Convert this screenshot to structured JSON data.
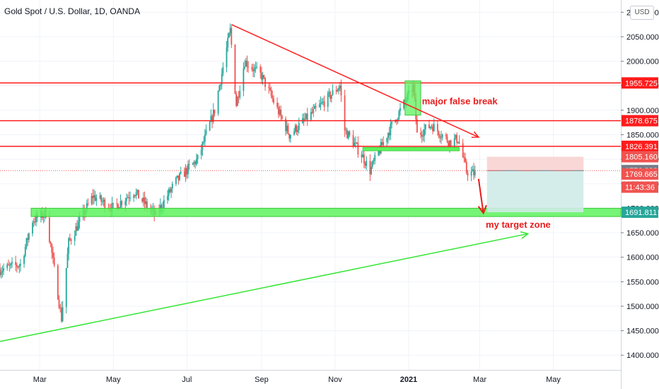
{
  "title": "Gold Spot / U.S. Dollar, 1D, OANDA",
  "currency": "USD",
  "chart_data": {
    "type": "candlestick",
    "x_labels": [
      "Mar",
      "May",
      "Jul",
      "Sep",
      "Nov",
      "2021",
      "Mar",
      "May"
    ],
    "x_label_positions": [
      "2020-03-01",
      "2020-05-01",
      "2020-07-01",
      "2020-09-01",
      "2020-11-01",
      "2021-01-01",
      "2021-03-01",
      "2021-05-01"
    ],
    "y_ticks": [
      1400,
      1450,
      1500,
      1550,
      1600,
      1650,
      1700,
      1750,
      1800,
      1850,
      1900,
      1950,
      2000,
      2050,
      2100
    ],
    "y_tick_labels": [
      "1400.000",
      "1450.000",
      "1500.000",
      "1550.000",
      "1600.000",
      "1650.000",
      "1700.000",
      "1750.000",
      "1800.000",
      "1850.000",
      "1900.000",
      "1950.000",
      "2000.000",
      "2050.000",
      "2100.000"
    ],
    "ylim": [
      1370,
      2125
    ],
    "xlim": [
      "2020-01-28",
      "2021-06-26"
    ],
    "price_anchors": [
      [
        "2020-01-28",
        1575
      ],
      [
        "2020-02-14",
        1585
      ],
      [
        "2020-02-24",
        1675
      ],
      [
        "2020-03-06",
        1690
      ],
      [
        "2020-03-19",
        1475
      ],
      [
        "2020-03-25",
        1630
      ],
      [
        "2020-04-14",
        1725
      ],
      [
        "2020-05-01",
        1700
      ],
      [
        "2020-05-18",
        1735
      ],
      [
        "2020-06-05",
        1685
      ],
      [
        "2020-06-22",
        1755
      ],
      [
        "2020-07-10",
        1800
      ],
      [
        "2020-07-24",
        1900
      ],
      [
        "2020-08-06",
        2063
      ],
      [
        "2020-08-11",
        1912
      ],
      [
        "2020-08-18",
        2000
      ],
      [
        "2020-09-01",
        1970
      ],
      [
        "2020-09-24",
        1850
      ],
      [
        "2020-10-20",
        1910
      ],
      [
        "2020-11-05",
        1950
      ],
      [
        "2020-11-09",
        1860
      ],
      [
        "2020-11-24",
        1805
      ],
      [
        "2020-11-30",
        1777
      ],
      [
        "2020-12-15",
        1855
      ],
      [
        "2021-01-05",
        1948
      ],
      [
        "2021-01-08",
        1850
      ],
      [
        "2021-01-20",
        1870
      ],
      [
        "2021-02-04",
        1835
      ],
      [
        "2021-02-11",
        1842
      ],
      [
        "2021-02-18",
        1775
      ],
      [
        "2021-02-25",
        1770
      ]
    ],
    "series": [
      {
        "type": "candlestick",
        "values": "daily OHLC Gold Spot / U.S. Dollar"
      }
    ],
    "horizontal_levels": [
      {
        "value": 1955.725,
        "label": "1955.725",
        "color": "#ff1c1c"
      },
      {
        "value": 1878.675,
        "label": "1878.675",
        "color": "#ff1c1c"
      },
      {
        "value": 1826.391,
        "label": "1826.391",
        "color": "#ff1c1c"
      }
    ],
    "price_labels": [
      {
        "value": 1805.16,
        "label": "1805.160",
        "color": "#ef5350"
      },
      {
        "value": 1776.823,
        "label": "1776.823",
        "color": "#787b86"
      },
      {
        "value": 1769.665,
        "label": "1769.665",
        "color": "#ef5350"
      },
      {
        "value": 1743.0,
        "label": "11:43:36",
        "color": "#ef5350"
      },
      {
        "value": 1691.811,
        "label": "1691.811",
        "color": "#26a69a"
      }
    ],
    "target_zone": {
      "from": 1683,
      "to": 1700,
      "color": "#5df25d"
    },
    "support_box": {
      "x1": "2020-11-24",
      "x2": "2021-02-12",
      "value": 1820,
      "color": "#5df25d"
    },
    "false_break_box": {
      "x1": "2020-12-29",
      "x2": "2021-01-11",
      "from": 1890,
      "to": 1960,
      "color": "#5df25d"
    },
    "trendline_down": {
      "from": [
        "2020-08-07",
        2075
      ],
      "to": [
        "2021-02-28",
        1845
      ],
      "color": "#ff1c1c"
    },
    "trendline_up": {
      "from": [
        "2020-01-28",
        1428
      ],
      "to": [
        "2021-04-10",
        1648
      ],
      "color": "#32e632"
    },
    "forecast_arrow": {
      "from": [
        "2021-02-28",
        1760
      ],
      "to": [
        "2021-03-04",
        1690
      ],
      "color": "#e81c1c"
    },
    "position_tool": {
      "x1": "2021-03-07",
      "x2": "2021-05-26",
      "stop": 1805.16,
      "entry": 1776.823,
      "target": 1691.811,
      "stop_color": "#f8cdcd",
      "target_color": "#cfebe8"
    },
    "annotations": [
      {
        "text": "major false break",
        "at": [
          "2021-01-12",
          1912
        ],
        "color": "#e81c1c"
      },
      {
        "text": "my target zone",
        "at": [
          "2021-03-06",
          1660
        ],
        "color": "#e81c1c"
      }
    ],
    "colors": {
      "up": "#26a69a",
      "down": "#ef5350",
      "grid": "#f0f3fa",
      "axis_text": "#131722"
    }
  }
}
